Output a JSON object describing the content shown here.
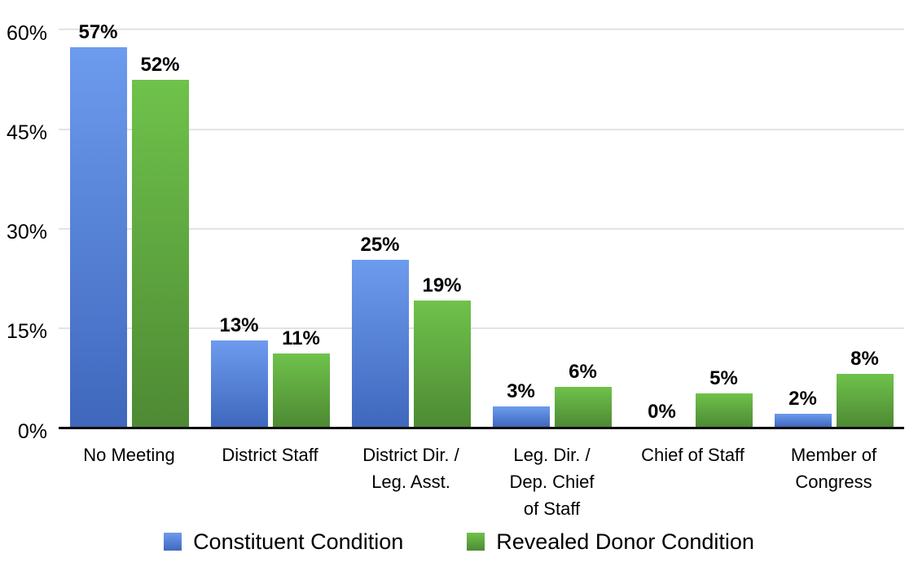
{
  "chart_data": {
    "type": "bar",
    "title": "",
    "categories": [
      "No Meeting",
      "District Staff",
      "District Dir. /\nLeg. Asst.",
      "Leg. Dir. /\nDep. Chief\nof Staff",
      "Chief of Staff",
      "Member of\nCongress"
    ],
    "series": [
      {
        "name": "Constituent Condition",
        "values": [
          57,
          13,
          25,
          3,
          0,
          2
        ],
        "color_top": "#6d9bee",
        "color_bottom": "#3f68bd"
      },
      {
        "name": "Revealed Donor Condition",
        "values": [
          52,
          11,
          19,
          6,
          5,
          8
        ],
        "color_top": "#6fc24b",
        "color_bottom": "#4e8a34"
      }
    ],
    "value_label_format": "{v}%",
    "yticks": [
      "60%",
      "45%",
      "30%",
      "15%",
      "0%"
    ],
    "ylim": [
      0,
      60
    ],
    "grid": true,
    "legend_position": "bottom",
    "colors": {
      "gridline": "#e3e3e3",
      "axis": "#0d0d0d",
      "text": "#000000"
    }
  }
}
